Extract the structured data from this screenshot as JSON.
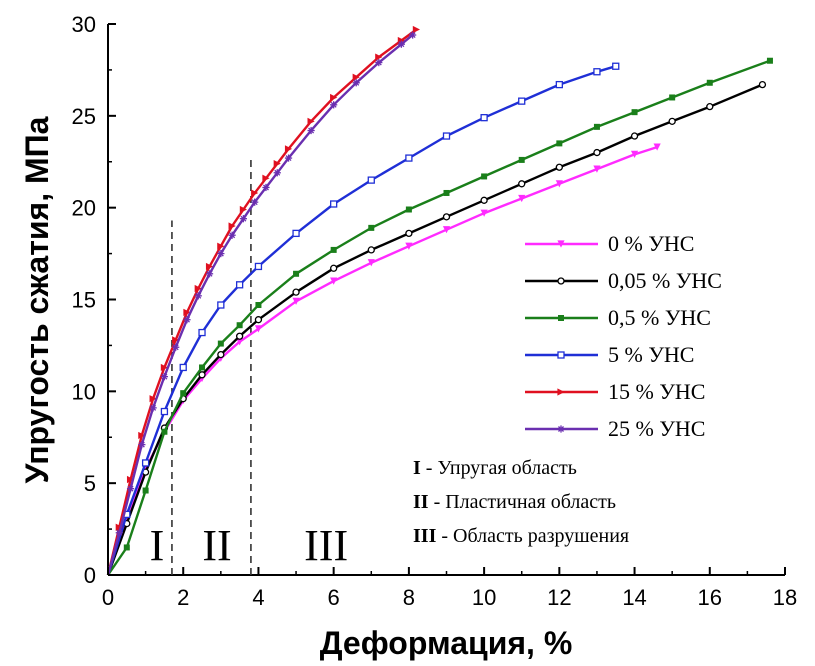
{
  "chart_data": {
    "type": "line",
    "title": "",
    "xlabel": "Деформация, %",
    "ylabel": "Упругость сжатия, МПа",
    "xlim": [
      0,
      18
    ],
    "ylim": [
      0,
      30
    ],
    "xticks": [
      "0",
      "2",
      "4",
      "6",
      "8",
      "10",
      "12",
      "14",
      "16",
      "18"
    ],
    "yticks": [
      "0",
      "5",
      "10",
      "15",
      "20",
      "25",
      "30"
    ],
    "grid": false,
    "legend_position": "right",
    "series": [
      {
        "name": "0 % УНС",
        "color": "#ff2bff",
        "marker": "triangle-down",
        "x": [
          0,
          0.5,
          1,
          1.5,
          2,
          2.5,
          3,
          3.5,
          4,
          5,
          6,
          7,
          8,
          9,
          10,
          11,
          12,
          13,
          14,
          14.6
        ],
        "y": [
          0,
          3.2,
          5.8,
          7.8,
          9.5,
          10.7,
          11.8,
          12.7,
          13.4,
          14.9,
          16.0,
          17.0,
          17.9,
          18.8,
          19.7,
          20.5,
          21.3,
          22.1,
          22.9,
          23.3
        ]
      },
      {
        "name": "0,05 % УНС",
        "color": "#000000",
        "marker": "circle-open",
        "x": [
          0,
          0.5,
          1,
          1.5,
          2,
          2.5,
          3,
          3.5,
          4,
          5,
          6,
          7,
          8,
          9,
          10,
          11,
          12,
          13,
          14,
          15,
          16,
          17.4
        ],
        "y": [
          0,
          2.8,
          5.6,
          8.0,
          9.6,
          10.9,
          12.0,
          13.0,
          13.9,
          15.4,
          16.7,
          17.7,
          18.6,
          19.5,
          20.4,
          21.3,
          22.2,
          23.0,
          23.9,
          24.7,
          25.5,
          26.7
        ]
      },
      {
        "name": "0,5 % УНС",
        "color": "#1a7f1a",
        "marker": "square-filled",
        "x": [
          0,
          0.5,
          1,
          1.5,
          2,
          2.5,
          3,
          3.5,
          4,
          5,
          6,
          7,
          8,
          9,
          10,
          11,
          12,
          13,
          14,
          15,
          16,
          17.6
        ],
        "y": [
          0,
          1.5,
          4.6,
          7.8,
          9.9,
          11.3,
          12.6,
          13.6,
          14.7,
          16.4,
          17.7,
          18.9,
          19.9,
          20.8,
          21.7,
          22.6,
          23.5,
          24.4,
          25.2,
          26.0,
          26.8,
          28.0
        ]
      },
      {
        "name": "5 % УНС",
        "color": "#1f2fd6",
        "marker": "square-open",
        "x": [
          0,
          0.5,
          1,
          1.5,
          2,
          2.5,
          3,
          3.5,
          4,
          5,
          6,
          7,
          8,
          9,
          10,
          11,
          12,
          13,
          13.5
        ],
        "y": [
          0,
          3.3,
          6.1,
          8.9,
          11.3,
          13.2,
          14.7,
          15.8,
          16.8,
          18.6,
          20.2,
          21.5,
          22.7,
          23.9,
          24.9,
          25.8,
          26.7,
          27.4,
          27.7
        ]
      },
      {
        "name": "15 % УНС",
        "color": "#e01020",
        "marker": "triangle-right",
        "x": [
          0,
          0.3,
          0.6,
          0.9,
          1.2,
          1.5,
          1.8,
          2.1,
          2.4,
          2.7,
          3.0,
          3.3,
          3.6,
          3.9,
          4.2,
          4.5,
          4.8,
          5.4,
          6.0,
          6.6,
          7.2,
          7.8,
          8.2
        ],
        "y": [
          0,
          2.6,
          5.2,
          7.6,
          9.6,
          11.3,
          12.8,
          14.3,
          15.6,
          16.8,
          17.9,
          19.0,
          19.9,
          20.8,
          21.6,
          22.4,
          23.2,
          24.7,
          26.0,
          27.1,
          28.2,
          29.1,
          29.7
        ]
      },
      {
        "name": "25 % УНС",
        "color": "#6a2fb0",
        "marker": "star",
        "x": [
          0,
          0.3,
          0.6,
          0.9,
          1.2,
          1.5,
          1.8,
          2.1,
          2.4,
          2.7,
          3.0,
          3.3,
          3.6,
          3.9,
          4.2,
          4.5,
          4.8,
          5.4,
          6.0,
          6.6,
          7.2,
          7.8,
          8.1
        ],
        "y": [
          0,
          2.3,
          4.7,
          7.1,
          9.1,
          10.8,
          12.4,
          13.9,
          15.2,
          16.4,
          17.5,
          18.5,
          19.4,
          20.3,
          21.1,
          21.9,
          22.7,
          24.2,
          25.6,
          26.8,
          27.9,
          28.9,
          29.4
        ]
      }
    ],
    "dividers": [
      1.7,
      3.8
    ],
    "regions": [
      {
        "label": "I",
        "x": 1.3
      },
      {
        "label": "II",
        "x": 2.9
      },
      {
        "label": "III",
        "x": 5.8
      }
    ],
    "notes": [
      {
        "roman": "I",
        "text": " - Упругая область"
      },
      {
        "roman": "II",
        "text": " - Пластичная область"
      },
      {
        "roman": "III",
        "text": " - Область разрушения"
      }
    ]
  }
}
